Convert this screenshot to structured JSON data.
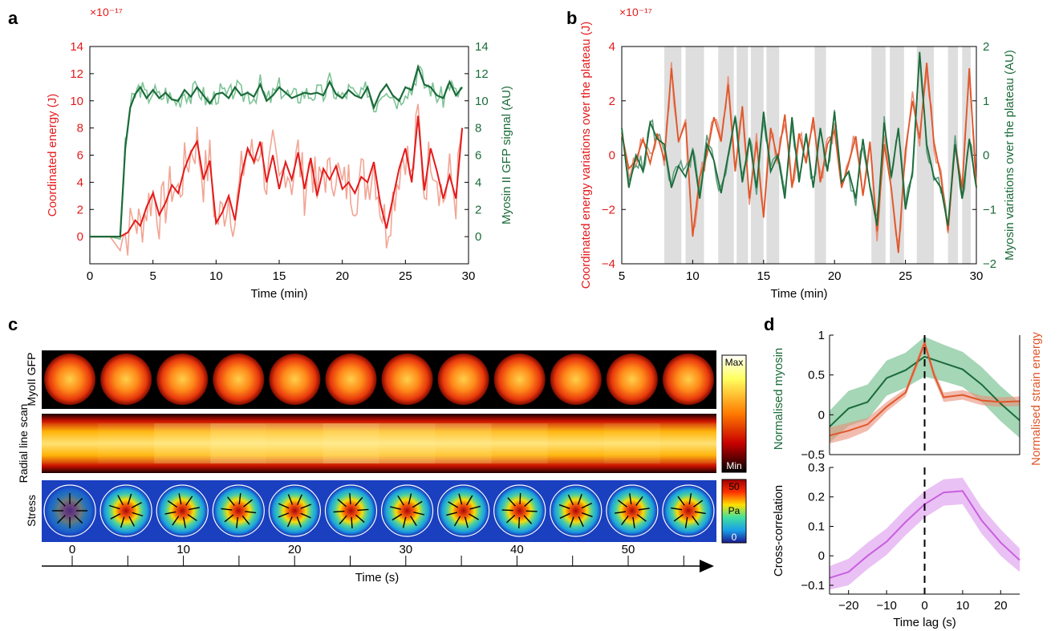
{
  "colors": {
    "red": "#e41a1c",
    "red_light": "#f2a594",
    "green": "#1b6b3a",
    "green_light": "#7fc497",
    "orange": "#e0572a",
    "orange_light": "#e8907a",
    "teal_light": "#5e9e7e",
    "gray_band": "#dedede",
    "violet": "#c85fe0",
    "violet_fill": "#e6b6f2"
  },
  "panels": {
    "a": "a",
    "b": "b",
    "c": "c",
    "d": "d"
  },
  "chart_data": [
    {
      "id": "a",
      "type": "line",
      "exponent": "×10⁻¹⁷",
      "xlabel": "Time (min)",
      "ylabel_left": "Coordinated energy (J)",
      "ylabel_right": "Myosin II GFP signal (AU)",
      "xlim": [
        0,
        30
      ],
      "ylim_left": [
        -2,
        14
      ],
      "ylim_right": [
        -2,
        14
      ],
      "xticks": [
        0,
        5,
        10,
        15,
        20,
        25,
        30
      ],
      "yticks_left": [
        0,
        2,
        4,
        6,
        8,
        10,
        12,
        14
      ],
      "yticks_right": [
        0,
        2,
        4,
        6,
        8,
        10,
        12,
        14
      ],
      "series": [
        {
          "axis": "left",
          "color_key": "red",
          "x": [
            0,
            2.4,
            3,
            3.6,
            4,
            4.5,
            5,
            5.5,
            6,
            6.5,
            7,
            7.5,
            8,
            8.5,
            9,
            9.5,
            10,
            10.5,
            11,
            11.5,
            12,
            12.5,
            13,
            13.5,
            14,
            14.5,
            15,
            15.5,
            16,
            16.5,
            17,
            17.5,
            18,
            18.5,
            19,
            19.5,
            20,
            20.5,
            21,
            21.5,
            22,
            22.5,
            23,
            23.5,
            24,
            24.5,
            25,
            25.5,
            26,
            26.5,
            27,
            27.5,
            28,
            28.5,
            29,
            29.5
          ],
          "y": [
            0,
            0,
            0.3,
            1.2,
            0.8,
            2.2,
            3.2,
            1.6,
            2.5,
            3.8,
            3.2,
            5.0,
            6.2,
            7.0,
            4.2,
            5.6,
            1.0,
            1.8,
            3.0,
            1.2,
            4.5,
            6.5,
            5.5,
            7.0,
            4.0,
            6.0,
            3.5,
            5.5,
            4.2,
            6.2,
            3.5,
            5.8,
            3.0,
            5.0,
            4.2,
            5.2,
            3.5,
            4.0,
            3.2,
            4.4,
            4.0,
            5.5,
            2.5,
            0.6,
            2.8,
            5.0,
            6.5,
            4.0,
            8.9,
            3.4,
            6.5,
            4.8,
            2.8,
            4.5,
            2.8,
            8.0
          ]
        },
        {
          "axis": "right",
          "color_key": "green",
          "x": [
            0,
            2.4,
            2.8,
            3.2,
            3.6,
            4,
            4.5,
            5,
            5.5,
            6,
            6.5,
            7,
            7.5,
            8,
            8.5,
            9,
            9.5,
            10,
            10.5,
            11,
            11.5,
            12,
            12.5,
            13,
            13.5,
            14,
            14.5,
            15,
            15.5,
            16,
            16.5,
            17,
            17.5,
            18,
            18.5,
            19,
            19.5,
            20,
            20.5,
            21,
            21.5,
            22,
            22.5,
            23,
            23.5,
            24,
            24.5,
            25,
            25.5,
            26,
            26.5,
            27,
            27.5,
            28,
            28.5,
            29,
            29.5
          ],
          "y": [
            0,
            0,
            6.5,
            9.5,
            10.5,
            11.0,
            10.2,
            10.8,
            10.2,
            10.6,
            10.1,
            10.0,
            10.8,
            10.3,
            11.0,
            10.4,
            9.8,
            10.5,
            10.6,
            10.2,
            11.0,
            10.4,
            10.6,
            10.3,
            11.2,
            10.0,
            10.4,
            11.0,
            10.6,
            10.2,
            10.4,
            10.6,
            10.5,
            10.6,
            10.4,
            11.4,
            10.5,
            10.2,
            10.8,
            10.4,
            10.2,
            11.0,
            9.5,
            10.6,
            11.2,
            10.4,
            10.0,
            11.0,
            10.8,
            12.5,
            11.2,
            11.0,
            10.4,
            10.2,
            11.4,
            10.4,
            11.0
          ]
        }
      ]
    },
    {
      "id": "b",
      "type": "line",
      "exponent": "×10⁻¹⁷",
      "xlabel": "Time (min)",
      "ylabel_left": "Coordinated energy variations over the plateau (J)",
      "ylabel_right": "Myosin variations over the plateau (AU)",
      "xlim": [
        5,
        30
      ],
      "ylim_left": [
        -4,
        4
      ],
      "ylim_right": [
        -2,
        2
      ],
      "xticks": [
        5,
        10,
        15,
        20,
        25,
        30
      ],
      "yticks_left": [
        -4,
        -2,
        0,
        2,
        4
      ],
      "yticks_right": [
        -2,
        -1,
        0,
        1,
        2
      ],
      "shaded_intervals": [
        [
          8.0,
          9.2
        ],
        [
          9.5,
          10.8
        ],
        [
          11.8,
          12.9
        ],
        [
          13.1,
          13.9
        ],
        [
          14.1,
          15.0
        ],
        [
          15.2,
          16.1
        ],
        [
          18.6,
          19.4
        ],
        [
          22.6,
          23.6
        ],
        [
          23.9,
          24.9
        ],
        [
          25.8,
          27.0
        ],
        [
          28.0,
          28.7
        ],
        [
          29.0,
          29.6
        ]
      ],
      "series": [
        {
          "axis": "left",
          "color_key": "orange",
          "x": [
            5,
            5.5,
            6,
            6.5,
            7,
            7.5,
            8,
            8.5,
            9,
            9.5,
            10,
            10.5,
            11,
            11.5,
            12,
            12.5,
            13,
            13.5,
            14,
            14.5,
            15,
            15.5,
            16,
            16.5,
            17,
            17.5,
            18,
            18.5,
            19,
            19.5,
            20,
            20.5,
            21,
            21.5,
            22,
            22.5,
            23,
            23.5,
            24,
            24.5,
            25,
            25.5,
            26,
            26.5,
            27,
            27.5,
            28,
            28.5,
            29,
            29.5,
            30
          ],
          "y": [
            0.8,
            -0.5,
            -0.2,
            0.6,
            -0.3,
            0.8,
            -0.2,
            3.2,
            0.5,
            1.2,
            -3.0,
            -0.8,
            0.0,
            1.4,
            0.5,
            2.6,
            -0.6,
            1.8,
            -1.6,
            0.5,
            -2.3,
            1.0,
            -0.2,
            1.5,
            -1.2,
            0.8,
            -0.3,
            1.4,
            -1.0,
            0.4,
            0.9,
            -1.2,
            -0.3,
            0.7,
            -1.5,
            0.5,
            -2.8,
            0.4,
            -1.2,
            -3.6,
            0.2,
            2.0,
            0.6,
            3.4,
            0.5,
            -0.8,
            -2.8,
            0.4,
            -1.2,
            3.2,
            -1.2
          ]
        },
        {
          "axis": "right",
          "color_key": "green",
          "x": [
            5,
            5.5,
            6,
            6.5,
            7,
            7.5,
            8,
            8.5,
            9,
            9.5,
            10,
            10.5,
            11,
            11.5,
            12,
            12.5,
            13,
            13.5,
            14,
            14.5,
            15,
            15.5,
            16,
            16.5,
            17,
            17.5,
            18,
            18.5,
            19,
            19.5,
            20,
            20.5,
            21,
            21.5,
            22,
            22.5,
            23,
            23.5,
            24,
            24.5,
            25,
            25.5,
            26,
            26.5,
            27,
            27.5,
            28,
            28.5,
            29,
            29.5,
            30
          ],
          "y": [
            0.5,
            -0.6,
            0.0,
            -0.3,
            0.6,
            0.3,
            0.2,
            -0.6,
            -0.2,
            -0.4,
            0.1,
            -0.8,
            0.2,
            -0.1,
            -0.7,
            0.0,
            0.7,
            -0.5,
            0.3,
            -0.6,
            0.8,
            -0.3,
            0.0,
            -0.8,
            0.7,
            -0.5,
            0.4,
            -0.6,
            0.5,
            -0.3,
            0.8,
            -0.5,
            -0.3,
            -0.8,
            0.3,
            -0.6,
            -1.3,
            0.6,
            -0.4,
            0.5,
            -1.0,
            -0.3,
            1.9,
            0.2,
            -0.4,
            -0.6,
            -1.3,
            0.2,
            -0.8,
            0.3,
            -0.6
          ]
        }
      ]
    },
    {
      "id": "d-top",
      "type": "line",
      "xlim": [
        -25,
        25
      ],
      "ylim": [
        -0.5,
        1
      ],
      "yticks": [
        -0.5,
        0,
        0.5,
        1
      ],
      "ylabel_left": "Normalised myosin",
      "ylabel_right": "Normalised strain energy",
      "series": [
        {
          "color_key": "green",
          "x": [
            -25,
            -20,
            -15,
            -10,
            -5,
            0,
            5,
            10,
            15,
            20,
            25
          ],
          "y": [
            -0.15,
            0.08,
            0.16,
            0.46,
            0.56,
            0.73,
            0.65,
            0.57,
            0.38,
            0.14,
            -0.07
          ],
          "band": [
            0.2,
            0.22,
            0.22,
            0.22,
            0.22,
            0.25,
            0.23,
            0.22,
            0.22,
            0.22,
            0.22
          ]
        },
        {
          "color_key": "orange",
          "x": [
            -25,
            -20,
            -15,
            -10,
            -5,
            0,
            2.5,
            5,
            10,
            15,
            20,
            25
          ],
          "y": [
            -0.26,
            -0.2,
            -0.12,
            0.1,
            0.28,
            0.9,
            0.5,
            0.22,
            0.25,
            0.18,
            0.16,
            0.17
          ],
          "band": [
            0.1,
            0.1,
            0.08,
            0.06,
            0.05,
            0.06,
            0.06,
            0.06,
            0.06,
            0.06,
            0.06,
            0.06
          ]
        }
      ]
    },
    {
      "id": "d-bottom",
      "type": "line",
      "xlabel": "Time lag (s)",
      "ylabel": "Cross-correlation",
      "xlim": [
        -25,
        25
      ],
      "ylim": [
        -0.13,
        0.3
      ],
      "xticks": [
        -20,
        -10,
        0,
        10,
        20
      ],
      "yticks": [
        -0.1,
        0,
        0.1,
        0.2,
        0.3
      ],
      "series": [
        {
          "color_key": "violet",
          "x": [
            -25,
            -20,
            -15,
            -10,
            -5,
            0,
            5,
            10,
            15,
            20,
            25
          ],
          "y": [
            -0.075,
            -0.055,
            0.0,
            0.048,
            0.115,
            0.175,
            0.215,
            0.22,
            0.12,
            0.045,
            -0.015
          ],
          "band": [
            0.04,
            0.045,
            0.045,
            0.045,
            0.045,
            0.045,
            0.045,
            0.045,
            0.045,
            0.045,
            0.04
          ]
        }
      ]
    }
  ],
  "panel_c": {
    "row_labels": [
      "MyoII GFP",
      "Radial line scan",
      "Stress"
    ],
    "colorbar_top": {
      "max": "Max",
      "min": "Min"
    },
    "colorbar_stress": {
      "max": "50",
      "unit": "Pa",
      "min": "0"
    },
    "frames": 12,
    "scan_levels": [
      0.55,
      0.62,
      0.78,
      0.92,
      0.88,
      0.97,
      0.9,
      0.83,
      0.72,
      0.6,
      0.66,
      0.58
    ],
    "time_ticks": [
      "0",
      "10",
      "20",
      "30",
      "40",
      "50"
    ],
    "time_label": "Time (s)"
  }
}
